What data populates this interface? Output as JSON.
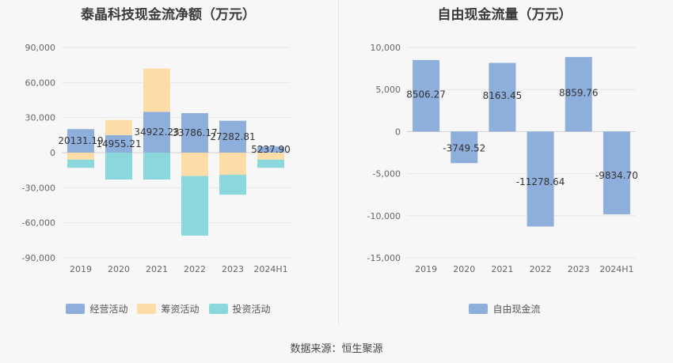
{
  "source": "数据来源：恒生聚源",
  "chart_data": [
    {
      "type": "bar",
      "stacked": true,
      "title": "泰晶科技现金流净额（万元）",
      "categories": [
        "2019",
        "2020",
        "2021",
        "2022",
        "2023",
        "2024H1"
      ],
      "ylim": [
        -90000,
        90000
      ],
      "yticks": [
        90000,
        60000,
        30000,
        0,
        -30000,
        -60000,
        -90000
      ],
      "ytick_labels": [
        "90,000",
        "60,000",
        "30,000",
        "0",
        "-30,000",
        "-60,000",
        "-90,000"
      ],
      "grid": true,
      "legend_position": "bottom",
      "series": [
        {
          "name": "经营活动",
          "color": "#8eaedc",
          "values": [
            20131.19,
            14955.21,
            34922.23,
            33786.17,
            27282.81,
            5237.9
          ]
        },
        {
          "name": "筹资活动",
          "color": "#fddca8",
          "values": [
            -6000,
            13000,
            37000,
            -20000,
            -19000,
            -6000
          ]
        },
        {
          "name": "投资活动",
          "color": "#8ad8dc",
          "values": [
            -7000,
            -23000,
            -23000,
            -51000,
            -17000,
            -7000
          ]
        }
      ],
      "data_labels": [
        "20131.19",
        "14955.21",
        "34922.23",
        "33786.17",
        "27282.81",
        "5237.90"
      ]
    },
    {
      "type": "bar",
      "title": "自由现金流量（万元）",
      "categories": [
        "2019",
        "2020",
        "2021",
        "2022",
        "2023",
        "2024H1"
      ],
      "ylim": [
        -15000,
        10000
      ],
      "yticks": [
        10000,
        5000,
        0,
        -5000,
        -10000,
        -15000
      ],
      "ytick_labels": [
        "10,000",
        "5,000",
        "0",
        "-5,000",
        "-10,000",
        "-15,000"
      ],
      "grid": true,
      "legend_position": "bottom",
      "series": [
        {
          "name": "自由现金流",
          "color": "#8eaedc",
          "values": [
            8506.27,
            -3749.52,
            8163.45,
            -11278.64,
            8859.76,
            -9834.7
          ]
        }
      ],
      "data_labels": [
        "8506.27",
        "-3749.52",
        "8163.45",
        "-11278.64",
        "8859.76",
        "-9834.70"
      ]
    }
  ]
}
